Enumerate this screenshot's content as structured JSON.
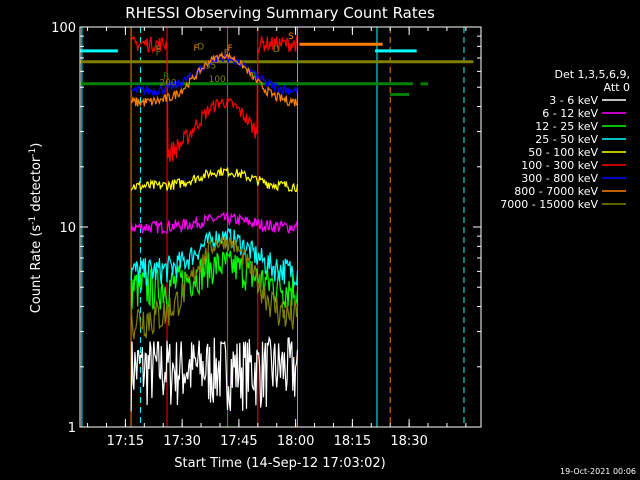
{
  "chart_data": {
    "type": "line",
    "title": "RHESSI Observing Summary Count Rates",
    "xlabel": "Start Time (14-Sep-12 17:03:02)",
    "ylabel_main": "Count Rate (s",
    "ylabel_sup": "-1",
    "ylabel_rest": " detector",
    "ylabel_end": ")",
    "yscale": "log",
    "ylim": [
      1,
      100
    ],
    "xlim_minutes": [
      1023,
      1129
    ],
    "x_ticks": [
      {
        "m": 1035,
        "label": "17:15"
      },
      {
        "m": 1050,
        "label": "17:30"
      },
      {
        "m": 1065,
        "label": "17:45"
      },
      {
        "m": 1080,
        "label": "18:00"
      },
      {
        "m": 1095,
        "label": "18:15"
      },
      {
        "m": 1110,
        "label": "18:30"
      }
    ],
    "y_ticks": [
      {
        "v": 1,
        "label": "1"
      },
      {
        "v": 10,
        "label": "10"
      },
      {
        "v": 100,
        "label": "100"
      }
    ],
    "legend_header": [
      "Det 1,3,5,6,9,",
      "Att 0"
    ],
    "series": [
      {
        "name": "3 - 6 keV",
        "color": "#ffffff",
        "level": 2.0
      },
      {
        "name": "6 - 12 keV",
        "color": "#ff00ff",
        "level": 10
      },
      {
        "name": "12 - 25 keV",
        "color": "#00ff00",
        "level": 5.5
      },
      {
        "name": "25 - 50 keV",
        "color": "#00ffff",
        "level": 7.5
      },
      {
        "name": "50 - 100 keV",
        "color": "#ffff00",
        "level": 18
      },
      {
        "name": "100 - 300 keV",
        "color": "#ff0000",
        "level": 40
      },
      {
        "name": "300 - 800 keV",
        "color": "#0000ff",
        "level": 55
      },
      {
        "name": "800 - 7000 keV",
        "color": "#ff8000",
        "level": 52
      },
      {
        "name": "7000 - 15000 keV",
        "color": "#808000",
        "level": 4.0
      }
    ],
    "flag_lines": [
      {
        "color": "#00ffff",
        "y": 76,
        "segments": [
          [
            1023,
            1033
          ],
          [
            1101,
            1112
          ]
        ]
      },
      {
        "color": "#ff8000",
        "y": 82,
        "segments": [
          [
            1081,
            1103
          ]
        ]
      },
      {
        "color": "#808000",
        "y": 67,
        "segments": [
          [
            1023,
            1127
          ]
        ]
      },
      {
        "color": "#008000",
        "y": 52,
        "segments": [
          [
            1023,
            1111
          ],
          [
            1113,
            1115
          ]
        ]
      },
      {
        "color": "#008000",
        "y": 46,
        "segments": [
          [
            1105,
            1110
          ]
        ]
      }
    ],
    "vertical_lines": [
      {
        "m": 1023.5,
        "color": "#00ffff",
        "style": "solid"
      },
      {
        "m": 1039,
        "color": "#00ffff",
        "style": "dashed"
      },
      {
        "m": 1101.5,
        "color": "#00ffff",
        "style": "solid"
      },
      {
        "m": 1124.5,
        "color": "#00ffff",
        "style": "dashed"
      },
      {
        "m": 1036.5,
        "color": "#ff8000",
        "style": "solid"
      },
      {
        "m": 1080.5,
        "color": "#ff8000",
        "style": "solid"
      },
      {
        "m": 1105,
        "color": "#ff8000",
        "style": "dashed"
      },
      {
        "m": 1046,
        "color": "#ff0000",
        "style": "solid"
      },
      {
        "m": 1070,
        "color": "#ff0000",
        "style": "solid"
      },
      {
        "m": 1062,
        "color": "#ff00ff",
        "style": "solid"
      }
    ],
    "annotations": [
      {
        "text": "S",
        "color": "#ff8000",
        "m": 1078,
        "y": 87
      },
      {
        "text": "D",
        "color": "#808000",
        "m": 1074,
        "y": 75
      },
      {
        "text": "F",
        "color": "#ff8000",
        "m": 1062,
        "y": 76
      },
      {
        "text": "F",
        "color": "#808000",
        "m": 1061,
        "y": 72
      },
      {
        "text": "F",
        "color": "#ff8000",
        "m": 1053,
        "y": 76
      },
      {
        "text": "F",
        "color": "#ff8000",
        "m": 1043,
        "y": 75
      },
      {
        "text": "F",
        "color": "#808000",
        "m": 1043,
        "y": 72
      },
      {
        "text": "D",
        "color": "#808000",
        "m": 1054,
        "y": 77
      },
      {
        "text": "R",
        "color": "#008000",
        "m": 1045,
        "y": 55
      },
      {
        "text": "R",
        "color": "#008000",
        "m": 1068,
        "y": 55
      },
      {
        "text": "35",
        "color": "#808000",
        "m": 1056,
        "y": 62
      },
      {
        "text": "100",
        "color": "#808000",
        "m": 1057,
        "y": 53
      },
      {
        "text": "200",
        "color": "#808000",
        "m": 1044,
        "y": 51
      }
    ],
    "timestamp": "19-Oct-2021 00:06"
  }
}
